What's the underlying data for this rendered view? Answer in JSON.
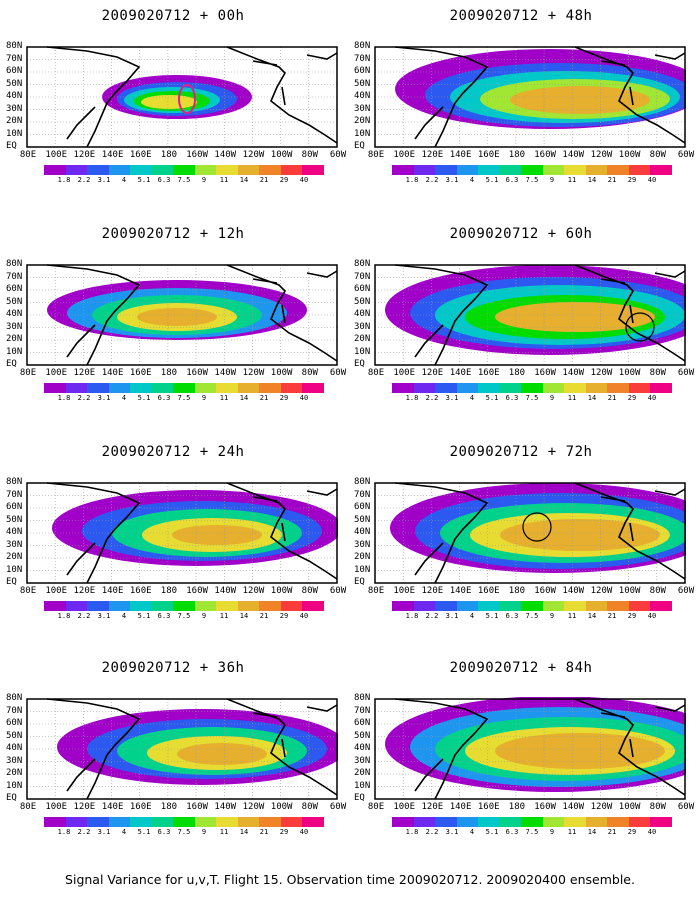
{
  "panels": [
    {
      "title": "2009020712 + 00h"
    },
    {
      "title": "2009020712 + 48h"
    },
    {
      "title": "2009020712 + 12h"
    },
    {
      "title": "2009020712 + 60h"
    },
    {
      "title": "2009020712 + 24h"
    },
    {
      "title": "2009020712 + 72h"
    },
    {
      "title": "2009020712 + 36h"
    },
    {
      "title": "2009020712 + 84h"
    }
  ],
  "axes": {
    "lat_labels": [
      "80N",
      "70N",
      "60N",
      "50N",
      "40N",
      "30N",
      "20N",
      "10N",
      "EQ"
    ],
    "lon_labels": [
      "80E",
      "100E",
      "120E",
      "140E",
      "160E",
      "180",
      "160W",
      "140W",
      "120W",
      "100W",
      "80W",
      "60W"
    ]
  },
  "colorbar": {
    "levels": [
      "1.8",
      "2.2",
      "3.1",
      "4",
      "5.1",
      "6.3",
      "7.5",
      "9",
      "11",
      "14",
      "21",
      "29",
      "40"
    ],
    "colors": [
      "#a000c8",
      "#6e28f0",
      "#2c5af0",
      "#1e96f0",
      "#00c8c8",
      "#00d28c",
      "#00dc00",
      "#a0e632",
      "#e6dc32",
      "#e6af2d",
      "#f08228",
      "#fa3c3c",
      "#f00082"
    ]
  },
  "caption": "Signal Variance for u,v,T. Flight 15. Observation time 2009020712. 2009020400 ensemble."
}
